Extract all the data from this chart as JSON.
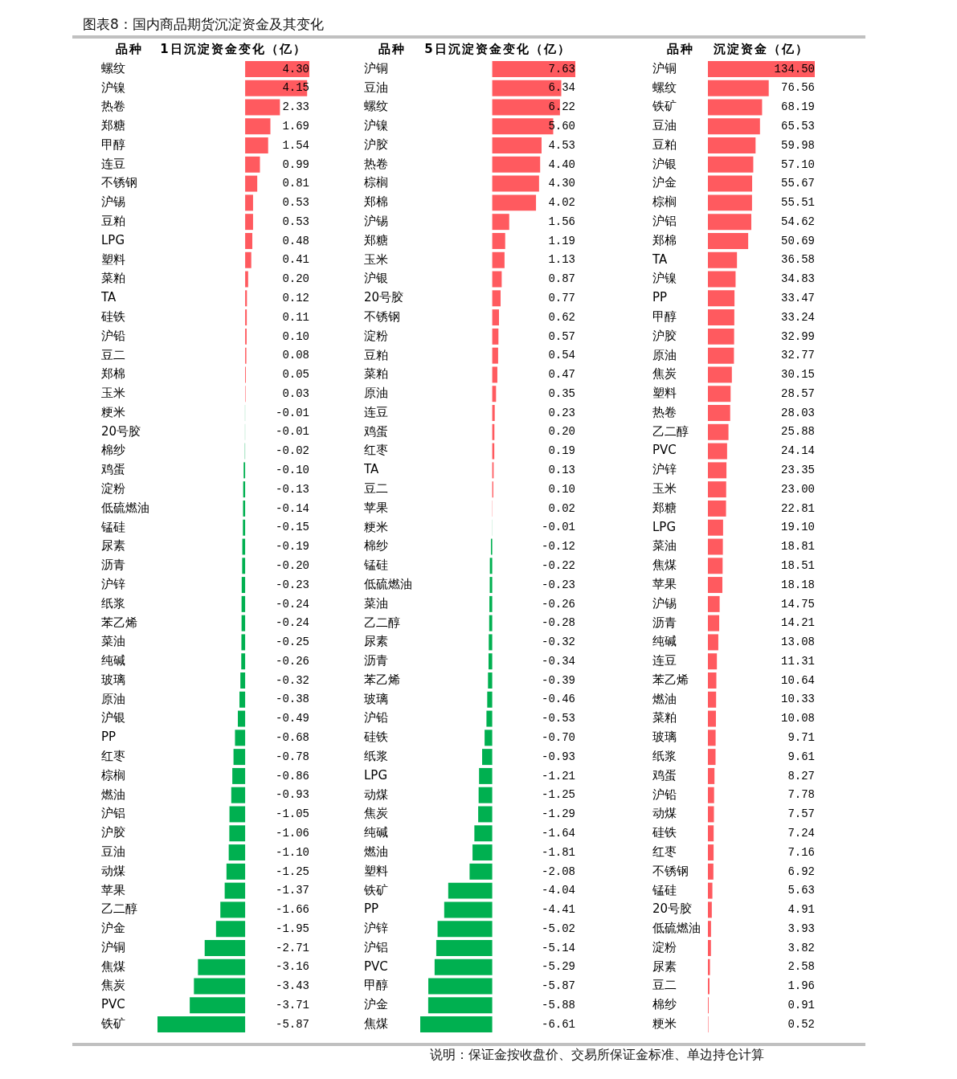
{
  "chart_data": [
    {
      "type": "bar",
      "orientation": "horizontal",
      "title": "图表8：国内商品期货沉淀资金及其变化",
      "ylabel": "品种",
      "xlabel": "1日沉淀资金变化（亿）",
      "tick_labels": "y",
      "xlim": [
        -5.87,
        4.3
      ],
      "categories": [
        "螺纹",
        "沪镍",
        "热卷",
        "郑糖",
        "甲醇",
        "连豆",
        "不锈钢",
        "沪锡",
        "豆粕",
        "LPG",
        "塑料",
        "菜粕",
        "TA",
        "硅铁",
        "沪铅",
        "豆二",
        "郑棉",
        "玉米",
        "粳米",
        "20号胶",
        "棉纱",
        "鸡蛋",
        "淀粉",
        "低硫燃油",
        "锰硅",
        "尿素",
        "沥青",
        "沪锌",
        "纸浆",
        "苯乙烯",
        "菜油",
        "纯碱",
        "玻璃",
        "原油",
        "沪银",
        "PP",
        "红枣",
        "棕榈",
        "燃油",
        "沪铝",
        "沪胶",
        "豆油",
        "动煤",
        "苹果",
        "乙二醇",
        "沪金",
        "沪铜",
        "焦煤",
        "焦炭",
        "PVC",
        "铁矿"
      ],
      "values": [
        4.3,
        4.15,
        2.33,
        1.69,
        1.54,
        0.99,
        0.81,
        0.53,
        0.53,
        0.48,
        0.41,
        0.2,
        0.12,
        0.11,
        0.1,
        0.08,
        0.05,
        0.03,
        -0.01,
        -0.01,
        -0.02,
        -0.1,
        -0.13,
        -0.14,
        -0.15,
        -0.19,
        -0.2,
        -0.23,
        -0.24,
        -0.24,
        -0.25,
        -0.26,
        -0.32,
        -0.38,
        -0.49,
        -0.68,
        -0.78,
        -0.86,
        -0.93,
        -1.05,
        -1.06,
        -1.1,
        -1.25,
        -1.37,
        -1.66,
        -1.95,
        -2.71,
        -3.16,
        -3.43,
        -3.71,
        -5.87
      ],
      "value_labels": [
        "4.30",
        "4.15",
        "2.33",
        "1.69",
        "1.54",
        "0.99",
        "0.81",
        "0.53",
        "0.53",
        "0.48",
        "0.41",
        "0.20",
        "0.12",
        "0.11",
        "0.10",
        "0.08",
        "0.05",
        "0.03",
        "-0.01",
        "-0.01",
        "-0.02",
        "-0.10",
        "-0.13",
        "-0.14",
        "-0.15",
        "-0.19",
        "-0.20",
        "-0.23",
        "-0.24",
        "-0.24",
        "-0.25",
        "-0.26",
        "-0.32",
        "-0.38",
        "-0.49",
        "-0.68",
        "-0.78",
        "-0.86",
        "-0.93",
        "-1.05",
        "-1.06",
        "-1.10",
        "-1.25",
        "-1.37",
        "-1.66",
        "-1.95",
        "-2.71",
        "-3.16",
        "-3.43",
        "-3.71",
        "-5.87"
      ],
      "colors": [
        "#ff5a5f",
        "#ff5a5f",
        "#ff5a5f",
        "#ff5a5f",
        "#ff5a5f",
        "#ff5a5f",
        "#ff5a5f",
        "#ff5a5f",
        "#ff5a5f",
        "#ff5a5f",
        "#ff5a5f",
        "#ff5a5f",
        "#ff5a5f",
        "#ff5a5f",
        "#ff5a5f",
        "#ff5a5f",
        "#ff5a5f",
        "#ff5a5f",
        "#00b050",
        "#00b050",
        "#00b050",
        "#00b050",
        "#00b050",
        "#00b050",
        "#00b050",
        "#00b050",
        "#00b050",
        "#00b050",
        "#00b050",
        "#00b050",
        "#00b050",
        "#00b050",
        "#00b050",
        "#00b050",
        "#00b050",
        "#00b050",
        "#00b050",
        "#00b050",
        "#00b050",
        "#00b050",
        "#00b050",
        "#00b050",
        "#00b050",
        "#00b050",
        "#00b050",
        "#00b050",
        "#00b050",
        "#00b050",
        "#00b050",
        "#00b050",
        "#00b050"
      ]
    },
    {
      "type": "bar",
      "orientation": "horizontal",
      "ylabel": "品种",
      "xlabel": "5日沉淀资金变化（亿）",
      "tick_labels": "y",
      "xlim": [
        -6.61,
        7.63
      ],
      "annotations": [
        "说明：保证金按收盘价、交易所保证金标准、单边持仓计算"
      ],
      "categories": [
        "沪铜",
        "豆油",
        "螺纹",
        "沪镍",
        "沪胶",
        "热卷",
        "棕榈",
        "郑棉",
        "沪锡",
        "郑糖",
        "玉米",
        "沪银",
        "20号胶",
        "不锈钢",
        "淀粉",
        "豆粕",
        "菜粕",
        "原油",
        "连豆",
        "鸡蛋",
        "红枣",
        "TA",
        "豆二",
        "苹果",
        "粳米",
        "棉纱",
        "锰硅",
        "低硫燃油",
        "菜油",
        "乙二醇",
        "尿素",
        "沥青",
        "苯乙烯",
        "玻璃",
        "沪铅",
        "硅铁",
        "纸浆",
        "LPG",
        "动煤",
        "焦炭",
        "纯碱",
        "燃油",
        "塑料",
        "铁矿",
        "PP",
        "沪锌",
        "沪铝",
        "PVC",
        "甲醇",
        "沪金",
        "焦煤"
      ],
      "values": [
        7.63,
        6.34,
        6.22,
        5.6,
        4.53,
        4.4,
        4.3,
        4.02,
        1.56,
        1.19,
        1.13,
        0.87,
        0.77,
        0.62,
        0.57,
        0.54,
        0.47,
        0.35,
        0.23,
        0.2,
        0.19,
        0.13,
        0.1,
        0.02,
        -0.01,
        -0.12,
        -0.22,
        -0.23,
        -0.26,
        -0.28,
        -0.32,
        -0.34,
        -0.39,
        -0.46,
        -0.53,
        -0.7,
        -0.93,
        -1.21,
        -1.25,
        -1.29,
        -1.64,
        -1.81,
        -2.08,
        -4.04,
        -4.41,
        -5.02,
        -5.14,
        -5.29,
        -5.87,
        -5.88,
        -6.61
      ],
      "value_labels": [
        "7.63",
        "6.34",
        "6.22",
        "5.60",
        "4.53",
        "4.40",
        "4.30",
        "4.02",
        "1.56",
        "1.19",
        "1.13",
        "0.87",
        "0.77",
        "0.62",
        "0.57",
        "0.54",
        "0.47",
        "0.35",
        "0.23",
        "0.20",
        "0.19",
        "0.13",
        "0.10",
        "0.02",
        "-0.01",
        "-0.12",
        "-0.22",
        "-0.23",
        "-0.26",
        "-0.28",
        "-0.32",
        "-0.34",
        "-0.39",
        "-0.46",
        "-0.53",
        "-0.70",
        "-0.93",
        "-1.21",
        "-1.25",
        "-1.29",
        "-1.64",
        "-1.81",
        "-2.08",
        "-4.04",
        "-4.41",
        "-5.02",
        "-5.14",
        "-5.29",
        "-5.87",
        "-5.88",
        "-6.61"
      ],
      "colors": [
        "#ff5a5f",
        "#ff5a5f",
        "#ff5a5f",
        "#ff5a5f",
        "#ff5a5f",
        "#ff5a5f",
        "#ff5a5f",
        "#ff5a5f",
        "#ff5a5f",
        "#ff5a5f",
        "#ff5a5f",
        "#ff5a5f",
        "#ff5a5f",
        "#ff5a5f",
        "#ff5a5f",
        "#ff5a5f",
        "#ff5a5f",
        "#ff5a5f",
        "#ff5a5f",
        "#ff5a5f",
        "#ff5a5f",
        "#ff5a5f",
        "#ff5a5f",
        "#ff5a5f",
        "#00b050",
        "#00b050",
        "#00b050",
        "#00b050",
        "#00b050",
        "#00b050",
        "#00b050",
        "#00b050",
        "#00b050",
        "#00b050",
        "#00b050",
        "#00b050",
        "#00b050",
        "#00b050",
        "#00b050",
        "#00b050",
        "#00b050",
        "#00b050",
        "#00b050",
        "#00b050",
        "#00b050",
        "#00b050",
        "#00b050",
        "#00b050",
        "#00b050",
        "#00b050",
        "#00b050"
      ]
    },
    {
      "type": "bar",
      "orientation": "horizontal",
      "ylabel": "品种",
      "xlabel": "沉淀资金（亿）",
      "tick_labels": "y",
      "xlim": [
        0,
        134.5
      ],
      "categories": [
        "沪铜",
        "螺纹",
        "铁矿",
        "豆油",
        "豆粕",
        "沪银",
        "沪金",
        "棕榈",
        "沪铝",
        "郑棉",
        "TA",
        "沪镍",
        "PP",
        "甲醇",
        "沪胶",
        "原油",
        "焦炭",
        "塑料",
        "热卷",
        "乙二醇",
        "PVC",
        "沪锌",
        "玉米",
        "郑糖",
        "LPG",
        "菜油",
        "焦煤",
        "苹果",
        "沪锡",
        "沥青",
        "纯碱",
        "连豆",
        "苯乙烯",
        "燃油",
        "菜粕",
        "玻璃",
        "纸浆",
        "鸡蛋",
        "沪铅",
        "动煤",
        "硅铁",
        "红枣",
        "不锈钢",
        "锰硅",
        "20号胶",
        "低硫燃油",
        "淀粉",
        "尿素",
        "豆二",
        "棉纱",
        "粳米"
      ],
      "values": [
        134.5,
        76.56,
        68.19,
        65.53,
        59.98,
        57.1,
        55.67,
        55.51,
        54.62,
        50.69,
        36.58,
        34.83,
        33.47,
        33.24,
        32.99,
        32.77,
        30.15,
        28.57,
        28.03,
        25.88,
        24.14,
        23.35,
        23.0,
        22.81,
        19.1,
        18.81,
        18.51,
        18.18,
        14.75,
        14.21,
        13.08,
        11.31,
        10.64,
        10.33,
        10.08,
        9.71,
        9.61,
        8.27,
        7.78,
        7.57,
        7.24,
        7.16,
        6.92,
        5.63,
        4.91,
        3.93,
        3.82,
        2.58,
        1.96,
        0.91,
        0.52
      ],
      "value_labels": [
        "134.50",
        "76.56",
        "68.19",
        "65.53",
        "59.98",
        "57.10",
        "55.67",
        "55.51",
        "54.62",
        "50.69",
        "36.58",
        "34.83",
        "33.47",
        "33.24",
        "32.99",
        "32.77",
        "30.15",
        "28.57",
        "28.03",
        "25.88",
        "24.14",
        "23.35",
        "23.00",
        "22.81",
        "19.10",
        "18.81",
        "18.51",
        "18.18",
        "14.75",
        "14.21",
        "13.08",
        "11.31",
        "10.64",
        "10.33",
        "10.08",
        "9.71",
        "9.61",
        "8.27",
        "7.78",
        "7.57",
        "7.24",
        "7.16",
        "6.92",
        "5.63",
        "4.91",
        "3.93",
        "3.82",
        "2.58",
        "1.96",
        "0.91",
        "0.52"
      ],
      "color": "#ff5a5f"
    }
  ]
}
